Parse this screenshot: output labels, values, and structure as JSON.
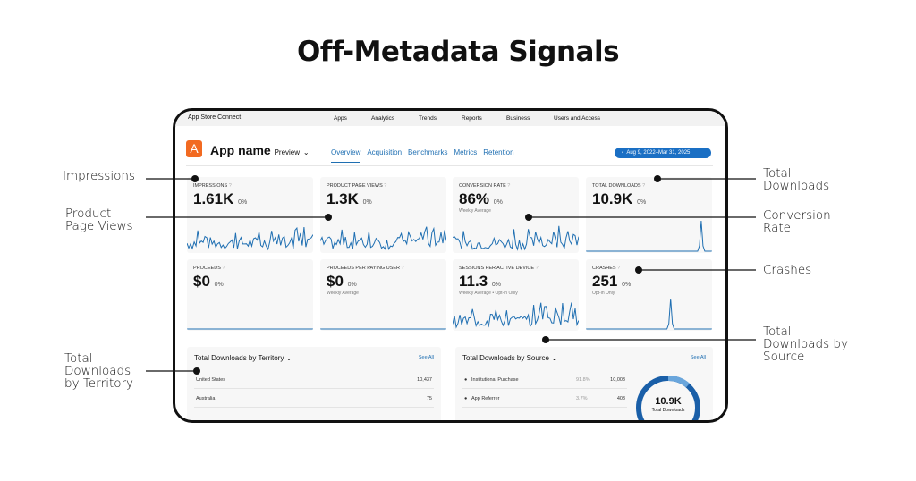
{
  "title": "Off-Metadata Signals",
  "nav": {
    "brand": "App Store Connect",
    "items": [
      "Apps",
      "Analytics",
      "Trends",
      "Reports",
      "Business",
      "Users and Access"
    ]
  },
  "app": {
    "icon_letter": "A",
    "name": "App name",
    "badge": "Preview",
    "tabs": [
      "Overview",
      "Acquisition",
      "Benchmarks",
      "Metrics",
      "Retention"
    ],
    "active_tab": "Overview",
    "date_range": "Aug 9, 2022–Mar 31, 2025"
  },
  "cards": [
    {
      "label": "IMPRESSIONS",
      "value": "1.61K",
      "change": "0%",
      "sub": ""
    },
    {
      "label": "PRODUCT PAGE VIEWS",
      "value": "1.3K",
      "change": "0%",
      "sub": ""
    },
    {
      "label": "CONVERSION RATE",
      "value": "86%",
      "change": "0%",
      "sub": "Weekly Average"
    },
    {
      "label": "TOTAL DOWNLOADS",
      "value": "10.9K",
      "change": "0%",
      "sub": ""
    },
    {
      "label": "PROCEEDS",
      "value": "$0",
      "change": "0%",
      "sub": ""
    },
    {
      "label": "PROCEEDS PER PAYING USER",
      "value": "$0",
      "change": "0%",
      "sub": "Weekly Average"
    },
    {
      "label": "SESSIONS PER ACTIVE DEVICE",
      "value": "11.3",
      "change": "0%",
      "sub": "Weekly Average • Opt-in Only"
    },
    {
      "label": "CRASHES",
      "value": "251",
      "change": "0%",
      "sub": "Opt-in Only"
    }
  ],
  "territory": {
    "title": "Total Downloads by Territory ⌄",
    "see_all": "See All",
    "rows": [
      {
        "name": "United States",
        "value": "10,437"
      },
      {
        "name": "Australia",
        "value": "75"
      }
    ]
  },
  "source": {
    "title": "Total Downloads by Source ⌄",
    "see_all": "See All",
    "rows": [
      {
        "name": "Institutional Purchase",
        "pct": "91.8%",
        "value": "10,003"
      },
      {
        "name": "App Referrer",
        "pct": "3.7%",
        "value": "403"
      }
    ],
    "donut_value": "10.9K",
    "donut_label": "Total Downloads"
  },
  "annotations": {
    "impressions": "Impressions",
    "ppv": "Product\nPage Views",
    "territory": "Total\nDownloads\nby Territory",
    "downloads": "Total\nDownloads",
    "conversion": "Conversion\nRate",
    "crashes": "Crashes",
    "source": "Total\nDownloads by\nSource"
  },
  "colors": {
    "accent": "#1a6fc4",
    "line": "#1f6fb2",
    "app_icon": "#f26a21"
  }
}
